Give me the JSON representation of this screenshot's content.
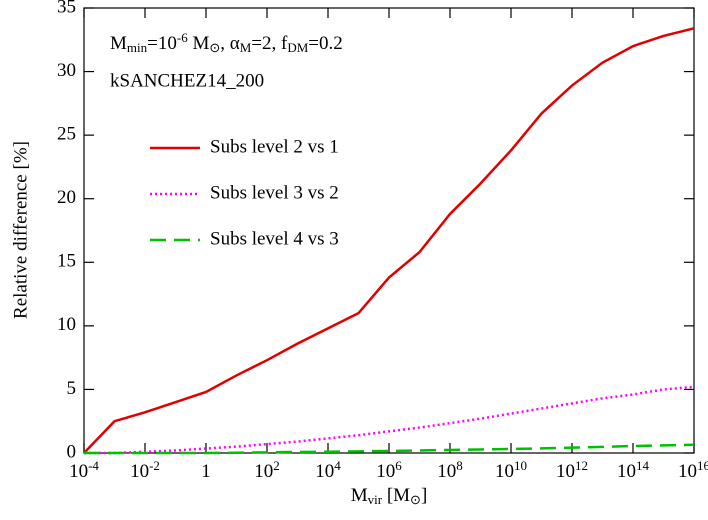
{
  "chart_data": {
    "type": "line",
    "xscale": "log",
    "xlabel": [
      {
        "text": "M"
      },
      {
        "sub": "vir"
      },
      {
        "text": "  [M"
      },
      {
        "sub": "⊙"
      },
      {
        "text": "]"
      }
    ],
    "ylabel": "Relative difference [%]",
    "annotation": [
      {
        "text": "M"
      },
      {
        "sub": "min"
      },
      {
        "text": "=10"
      },
      {
        "sup": "-6"
      },
      {
        "text": " M"
      },
      {
        "sub": "⊙"
      },
      {
        "text": ",  α"
      },
      {
        "sub": "M"
      },
      {
        "text": "=2,  f"
      },
      {
        "sub": "DM"
      },
      {
        "text": "=0.2"
      }
    ],
    "subtitle": "kSANCHEZ14_200",
    "subtitle_color": "#0000ff",
    "x": [
      0.0001,
      0.001,
      0.01,
      0.1,
      1,
      10,
      100,
      1000,
      10000,
      100000,
      1000000,
      10000000,
      100000000,
      1000000000,
      10000000000,
      100000000000,
      1000000000000,
      10000000000000,
      100000000000000,
      1000000000000000,
      10000000000000000
    ],
    "series": [
      {
        "name": "Subs level 2 vs 1",
        "color": "#e00000",
        "dash": "solid",
        "values": [
          0,
          2.5,
          3.2,
          4.0,
          4.8,
          6.1,
          7.3,
          8.6,
          9.8,
          11.0,
          13.8,
          15.8,
          18.8,
          21.2,
          23.8,
          26.7,
          28.9,
          30.7,
          32.0,
          32.8,
          33.4
        ]
      },
      {
        "name": "Subs level 3 vs 2",
        "color": "#ff00ff",
        "dash": "dotted",
        "values": [
          0,
          0,
          0.1,
          0.2,
          0.35,
          0.5,
          0.7,
          0.9,
          1.15,
          1.4,
          1.7,
          2.0,
          2.35,
          2.7,
          3.1,
          3.5,
          3.9,
          4.3,
          4.6,
          5.0,
          5.2
        ]
      },
      {
        "name": "Subs level 4 vs 3",
        "color": "#00c000",
        "dash": "dashed",
        "values": [
          0,
          0,
          0,
          0,
          0,
          0.02,
          0.05,
          0.08,
          0.1,
          0.13,
          0.16,
          0.2,
          0.24,
          0.28,
          0.32,
          0.36,
          0.42,
          0.48,
          0.55,
          0.6,
          0.65
        ]
      }
    ],
    "xlim": [
      0.0001,
      10000000000000000
    ],
    "xticks": [
      {
        "value": 0.0001,
        "label": "10",
        "sup": "-4"
      },
      {
        "value": 0.01,
        "label": "10",
        "sup": "-2"
      },
      1,
      {
        "value": 100,
        "label": "10",
        "sup": "2"
      },
      {
        "value": 10000,
        "label": "10",
        "sup": "4"
      },
      {
        "value": 1000000,
        "label": "10",
        "sup": "6"
      },
      {
        "value": 100000000,
        "label": "10",
        "sup": "8"
      },
      {
        "value": 10000000000,
        "label": "10",
        "sup": "10"
      },
      {
        "value": 1000000000000,
        "label": "10",
        "sup": "12"
      },
      {
        "value": 100000000000000,
        "label": "10",
        "sup": "14"
      },
      {
        "value": 10000000000000000,
        "label": "10",
        "sup": "16"
      }
    ],
    "ylim": [
      0,
      35
    ],
    "yticks": [
      0,
      5,
      10,
      15,
      20,
      25,
      30,
      35
    ]
  }
}
